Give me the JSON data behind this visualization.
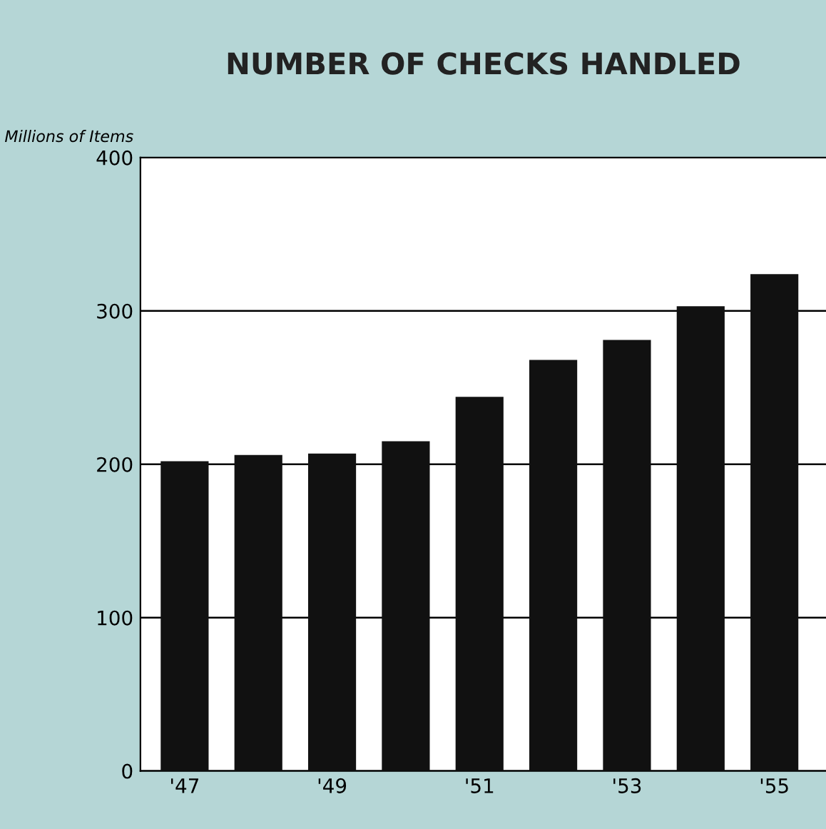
{
  "chart_data": {
    "type": "bar",
    "title": "NUMBER OF CHECKS HANDLED",
    "ylabel": "Millions of Items",
    "categories": [
      "'47",
      null,
      "'49",
      null,
      "'51",
      null,
      "'53",
      null,
      "'55"
    ],
    "values": [
      202,
      206,
      207,
      215,
      244,
      268,
      281,
      303,
      324
    ],
    "color": "#111111",
    "ylim": [
      0,
      400
    ],
    "yticks": [
      0,
      100,
      200,
      300,
      400
    ],
    "grid": "y"
  }
}
